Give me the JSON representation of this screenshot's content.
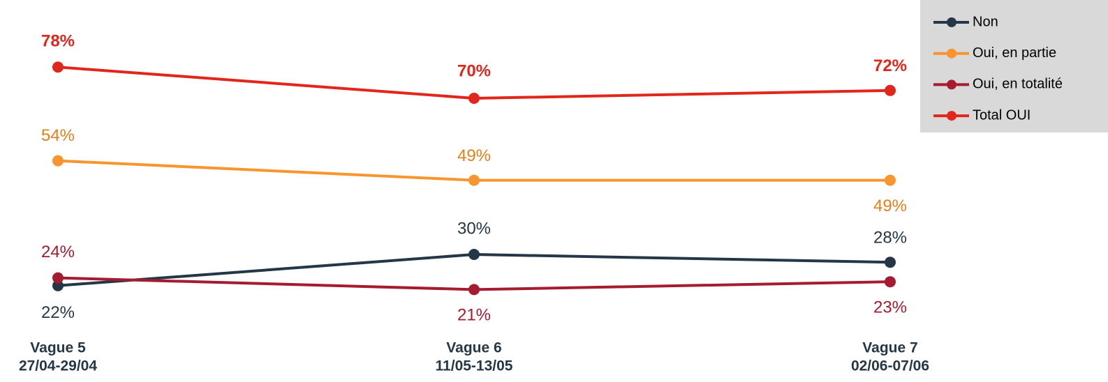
{
  "chart_data": {
    "type": "line",
    "categories": [
      "Vague 5",
      "Vague 6",
      "Vague 7"
    ],
    "category_dates": [
      "27/04-29/04",
      "11/05-13/05",
      "02/06-07/06"
    ],
    "ylim": [
      0,
      95
    ],
    "legend": "top-right",
    "series": [
      {
        "name": "Non",
        "color": "#253746",
        "values": [
          22,
          30,
          28
        ],
        "value_labels": [
          "22%",
          "30%",
          "28%"
        ]
      },
      {
        "name": "Oui, en partie",
        "color": "#f7952f",
        "values": [
          54,
          49,
          49
        ],
        "value_labels": [
          "54%",
          "49%",
          "49%"
        ]
      },
      {
        "name": "Oui, en totalité",
        "color": "#a51c30",
        "values": [
          24,
          21,
          23
        ],
        "value_labels": [
          "24%",
          "21%",
          "23%"
        ]
      },
      {
        "name": "Total OUI",
        "color": "#e1261c",
        "values": [
          78,
          70,
          72
        ],
        "value_labels": [
          "78%",
          "70%",
          "72%"
        ]
      }
    ]
  }
}
